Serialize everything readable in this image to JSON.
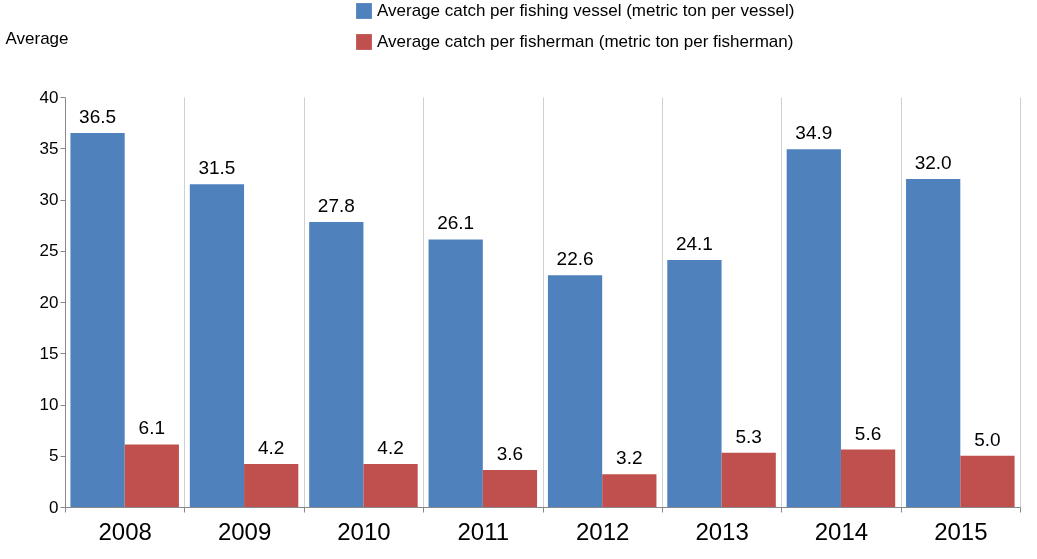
{
  "chart_data": {
    "type": "bar",
    "ylabel": "Average",
    "categories": [
      "2008",
      "2009",
      "2010",
      "2011",
      "2012",
      "2013",
      "2014",
      "2015"
    ],
    "series": [
      {
        "name": "Average catch per fishing vessel (metric ton per vessel)",
        "color": "#4f81bd",
        "values": [
          36.5,
          31.5,
          27.8,
          26.1,
          22.6,
          24.1,
          34.9,
          32.0
        ],
        "value_labels": [
          "36.5",
          "31.5",
          "27.8",
          "26.1",
          "22.6",
          "24.1",
          "34.9",
          "32.0"
        ]
      },
      {
        "name": "Average catch per fisherman (metric ton per fisherman)",
        "color": "#c0504d",
        "values": [
          6.1,
          4.2,
          4.2,
          3.6,
          3.2,
          5.3,
          5.6,
          5.0
        ],
        "value_labels": [
          "6.1",
          "4.2",
          "4.2",
          "3.6",
          "3.2",
          "5.3",
          "5.6",
          "5.0"
        ]
      }
    ],
    "ylim": [
      0,
      40
    ],
    "yticks": [
      0,
      5,
      10,
      15,
      20,
      25,
      30,
      35,
      40
    ],
    "grid": "x",
    "legend": "top"
  }
}
